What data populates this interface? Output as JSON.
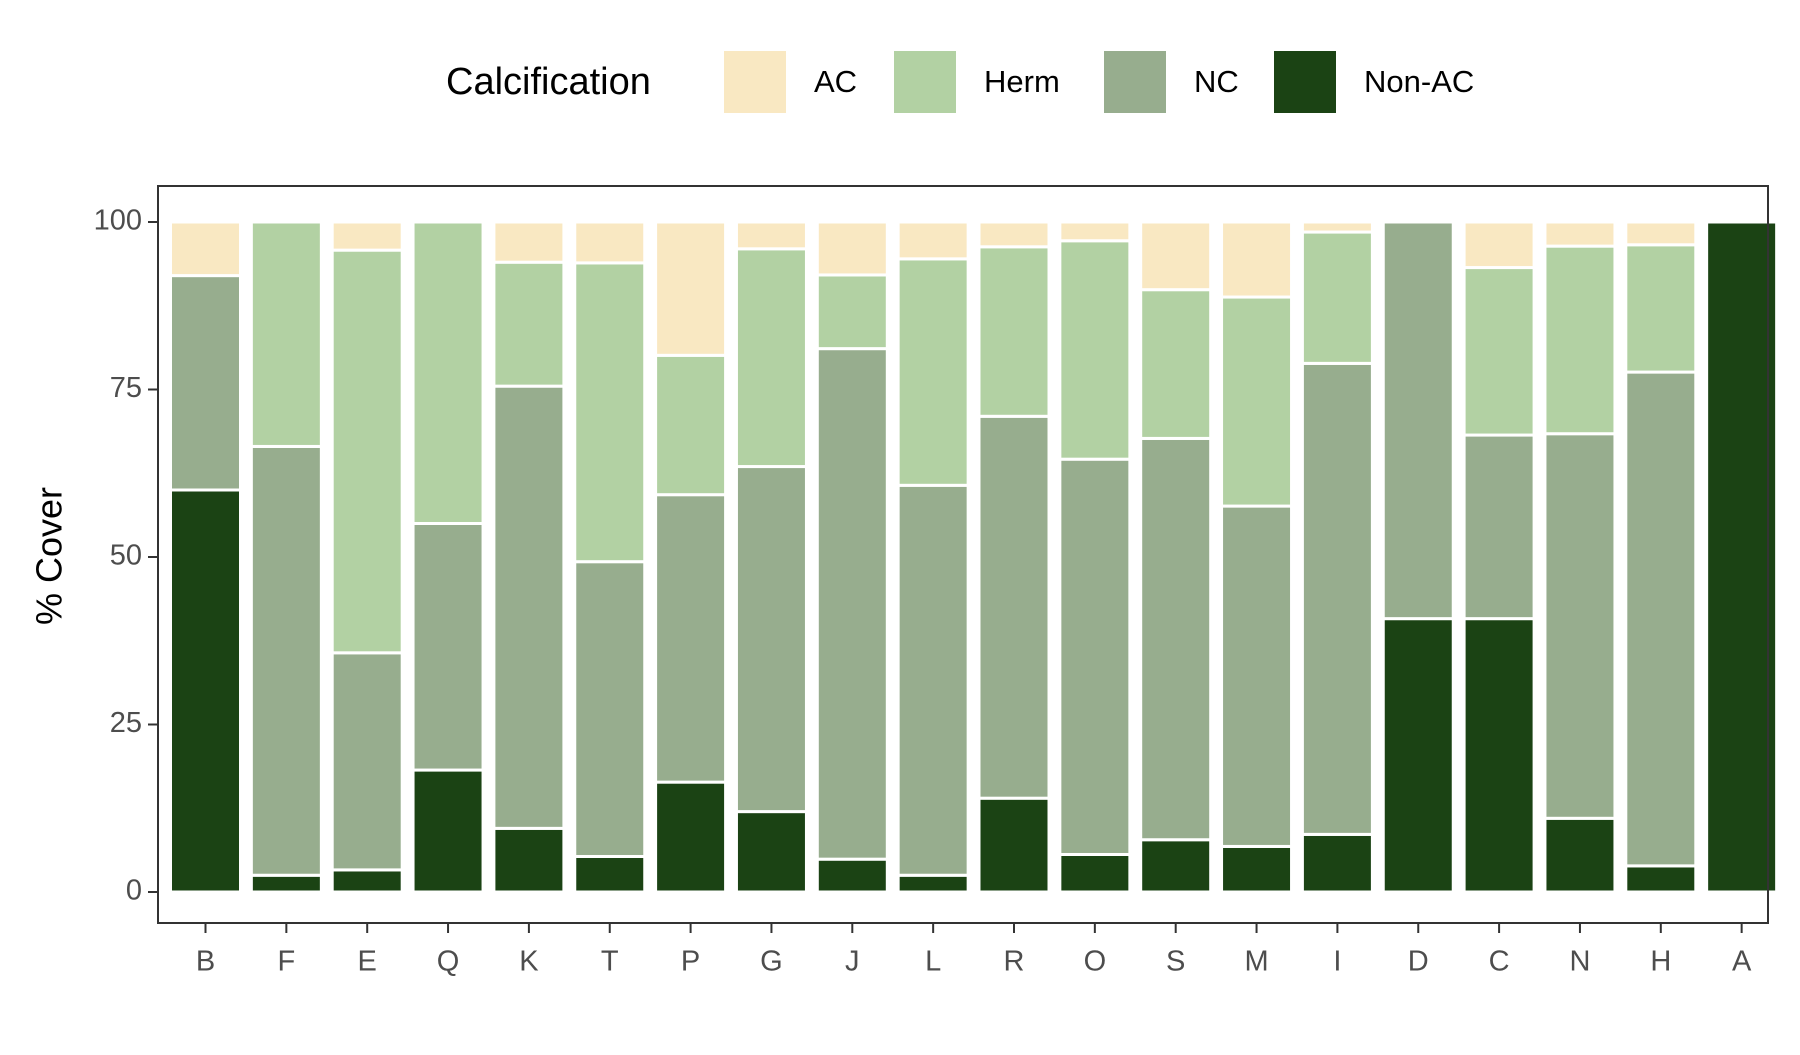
{
  "chart_data": {
    "type": "bar",
    "stacked": true,
    "title": "",
    "xlabel": "",
    "ylabel": "% Cover",
    "ylim": [
      0,
      100
    ],
    "yticks": [
      0,
      25,
      50,
      75,
      100
    ],
    "grid": false,
    "legend": {
      "title": "Calcification",
      "position": "top"
    },
    "categories": [
      "B",
      "F",
      "E",
      "Q",
      "K",
      "T",
      "P",
      "G",
      "J",
      "L",
      "R",
      "O",
      "S",
      "M",
      "I",
      "D",
      "C",
      "N",
      "H",
      "A"
    ],
    "series": [
      {
        "name": "Non-AC",
        "color": "#1b4314",
        "values": [
          60,
          2.5,
          3.3,
          18.2,
          9.5,
          5.3,
          16.4,
          12,
          4.9,
          2.5,
          14,
          5.6,
          7.8,
          6.8,
          8.6,
          40.8,
          40.8,
          11,
          3.9,
          100
        ]
      },
      {
        "name": "NC",
        "color": "#97ad8e",
        "values": [
          32,
          64,
          32.4,
          36.8,
          66,
          44,
          42.9,
          51.5,
          76.2,
          58.2,
          57,
          59,
          59.9,
          50.8,
          70.3,
          59.2,
          27.4,
          57.4,
          73.7,
          0
        ]
      },
      {
        "name": "Herm",
        "color": "#b2d1a3",
        "values": [
          0,
          33.5,
          60.1,
          45,
          18.5,
          44.6,
          20.8,
          32.5,
          11,
          33.8,
          25.3,
          32.6,
          22.2,
          31.2,
          19.6,
          0,
          25,
          28,
          19,
          0
        ]
      },
      {
        "name": "AC",
        "color": "#f9e8c2",
        "values": [
          8,
          0,
          4.2,
          0,
          6,
          6.1,
          19.9,
          4,
          7.9,
          5.5,
          3.7,
          2.8,
          10.1,
          11.2,
          1.5,
          0,
          6.8,
          3.6,
          3.4,
          0
        ]
      }
    ],
    "legend_order": [
      "AC",
      "Herm",
      "NC",
      "Non-AC"
    ]
  }
}
